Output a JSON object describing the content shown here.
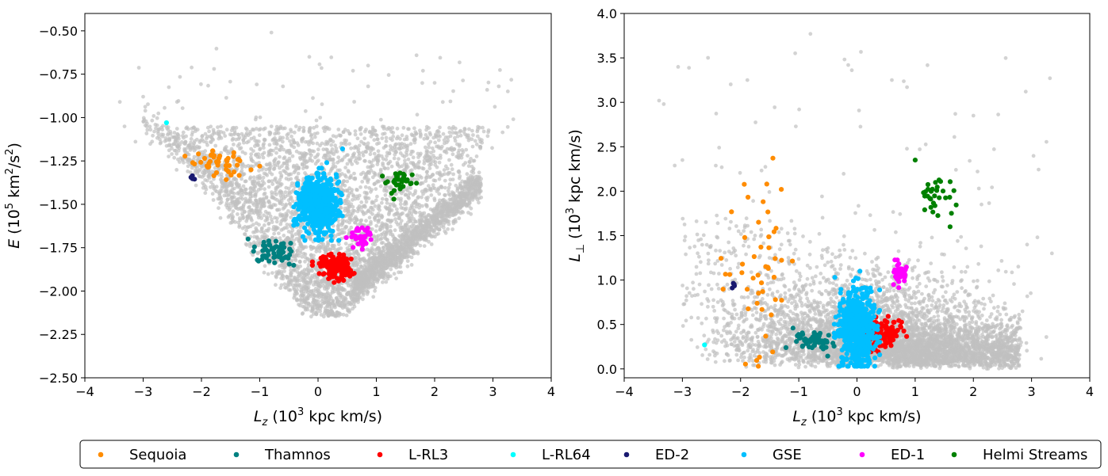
{
  "chart_data": [
    {
      "type": "scatter",
      "id": "left",
      "xlabel": "L_z (10^3 kpc km/s)",
      "ylabel": "E (10^5 km^2/s^2)",
      "xlim": [
        -4,
        4
      ],
      "ylim": [
        -2.5,
        -0.4
      ],
      "xticks": [
        -4,
        -3,
        -2,
        -1,
        0,
        1,
        2,
        3,
        4
      ],
      "xtick_labels": [
        "−4",
        "−3",
        "−2",
        "−1",
        "0",
        "1",
        "2",
        "3",
        "4"
      ],
      "yticks": [
        -2.5,
        -2.25,
        -2.0,
        -1.75,
        -1.5,
        -1.25,
        -1.0,
        -0.75,
        -0.5
      ],
      "ytick_labels": [
        "−2.50",
        "−2.25",
        "−2.00",
        "−1.75",
        "−1.50",
        "−1.25",
        "−1.00",
        "−0.75",
        "−0.50"
      ],
      "background_sample": "all stars (grey)",
      "series": [
        {
          "name": "Sequoia",
          "color": "#ff8c00",
          "cx": -1.65,
          "cy": -1.27,
          "sx": 0.25,
          "sy": 0.04,
          "n": 45,
          "extra": [
            [
              -2.15,
              -1.26
            ]
          ]
        },
        {
          "name": "Thamnos",
          "color": "#008080",
          "cx": -0.75,
          "cy": -1.77,
          "sx": 0.18,
          "sy": 0.035,
          "n": 55,
          "extra": [
            [
              -1.2,
              -1.7
            ]
          ]
        },
        {
          "name": "L-RL3",
          "color": "#ff0000",
          "cx": 0.32,
          "cy": -1.86,
          "sx": 0.16,
          "sy": 0.035,
          "n": 140,
          "extra": [
            [
              0.05,
              -1.81
            ]
          ]
        },
        {
          "name": "L-RL64",
          "color": "#00ffff",
          "cx": -2.6,
          "cy": -1.03,
          "sx": 0.0,
          "sy": 0.0,
          "n": 1,
          "extra": []
        },
        {
          "name": "ED-2",
          "color": "#191970",
          "cx": -2.15,
          "cy": -1.35,
          "sx": 0.03,
          "sy": 0.015,
          "n": 4,
          "extra": []
        },
        {
          "name": "GSE",
          "color": "#00bfff",
          "cx": 0.0,
          "cy": -1.5,
          "sx": 0.16,
          "sy": 0.08,
          "n": 600,
          "extra": [
            [
              0.42,
              -1.18
            ],
            [
              0.15,
              -1.26
            ],
            [
              -0.35,
              -1.39
            ]
          ]
        },
        {
          "name": "ED-1",
          "color": "#ff00ff",
          "cx": 0.72,
          "cy": -1.69,
          "sx": 0.09,
          "sy": 0.03,
          "n": 40,
          "extra": []
        },
        {
          "name": "Helmi Streams",
          "color": "#008000",
          "cx": 1.4,
          "cy": -1.37,
          "sx": 0.13,
          "sy": 0.03,
          "n": 30,
          "extra": [
            [
              1.3,
              -1.47
            ]
          ]
        }
      ]
    },
    {
      "type": "scatter",
      "id": "right",
      "xlabel": "L_z (10^3 kpc km/s)",
      "ylabel": "L_⊥ (10^3 kpc km/s)",
      "xlim": [
        -4,
        4
      ],
      "ylim": [
        -0.1,
        4.0
      ],
      "xticks": [
        -4,
        -3,
        -2,
        -1,
        0,
        1,
        2,
        3,
        4
      ],
      "xtick_labels": [
        "−4",
        "−3",
        "−2",
        "−1",
        "0",
        "1",
        "2",
        "3",
        "4"
      ],
      "yticks": [
        0.0,
        0.5,
        1.0,
        1.5,
        2.0,
        2.5,
        3.0,
        3.5,
        4.0
      ],
      "ytick_labels": [
        "0.0",
        "0.5",
        "1.0",
        "1.5",
        "2.0",
        "2.5",
        "3.0",
        "3.5",
        "4.0"
      ],
      "background_sample": "all stars (grey)",
      "series": [
        {
          "name": "Sequoia",
          "color": "#ff8c00",
          "cx": -1.6,
          "cy": 1.1,
          "sx": 0.3,
          "sy": 0.5,
          "n": 45,
          "extra": [
            [
              -1.55,
              2.08
            ],
            [
              -1.3,
              2.02
            ]
          ]
        },
        {
          "name": "Thamnos",
          "color": "#008080",
          "cx": -0.75,
          "cy": 0.3,
          "sx": 0.15,
          "sy": 0.06,
          "n": 55,
          "extra": [
            [
              -1.22,
              0.24
            ],
            [
              -1.1,
              0.46
            ]
          ]
        },
        {
          "name": "L-RL3",
          "color": "#ff0000",
          "cx": 0.42,
          "cy": 0.4,
          "sx": 0.18,
          "sy": 0.08,
          "n": 140,
          "extra": []
        },
        {
          "name": "L-RL64",
          "color": "#00ffff",
          "cx": -2.62,
          "cy": 0.27,
          "sx": 0.0,
          "sy": 0.0,
          "n": 1,
          "extra": []
        },
        {
          "name": "ED-2",
          "color": "#191970",
          "cx": -2.12,
          "cy": 0.95,
          "sx": 0.04,
          "sy": 0.06,
          "n": 4,
          "extra": []
        },
        {
          "name": "GSE",
          "color": "#00bfff",
          "cx": 0.0,
          "cy": 0.45,
          "sx": 0.15,
          "sy": 0.22,
          "n": 600,
          "extra": [
            [
              0.05,
              1.1
            ],
            [
              -0.38,
              1.03
            ]
          ]
        },
        {
          "name": "ED-1",
          "color": "#ff00ff",
          "cx": 0.72,
          "cy": 1.07,
          "sx": 0.06,
          "sy": 0.06,
          "n": 40,
          "extra": []
        },
        {
          "name": "Helmi Streams",
          "color": "#008000",
          "cx": 1.35,
          "cy": 1.95,
          "sx": 0.16,
          "sy": 0.2,
          "n": 30,
          "extra": [
            [
              1.0,
              2.35
            ],
            [
              1.6,
              1.6
            ]
          ]
        }
      ]
    }
  ],
  "legend": {
    "position": "bottom",
    "items": [
      {
        "label": "Sequoia",
        "color": "#ff8c00"
      },
      {
        "label": "Thamnos",
        "color": "#008080"
      },
      {
        "label": "L-RL3",
        "color": "#ff0000"
      },
      {
        "label": "L-RL64",
        "color": "#00ffff"
      },
      {
        "label": "ED-2",
        "color": "#191970"
      },
      {
        "label": "GSE",
        "color": "#00bfff"
      },
      {
        "label": "ED-1",
        "color": "#ff00ff"
      },
      {
        "label": "Helmi Streams",
        "color": "#008000"
      }
    ]
  },
  "colors": {
    "background_points": "#c0c0c0"
  }
}
